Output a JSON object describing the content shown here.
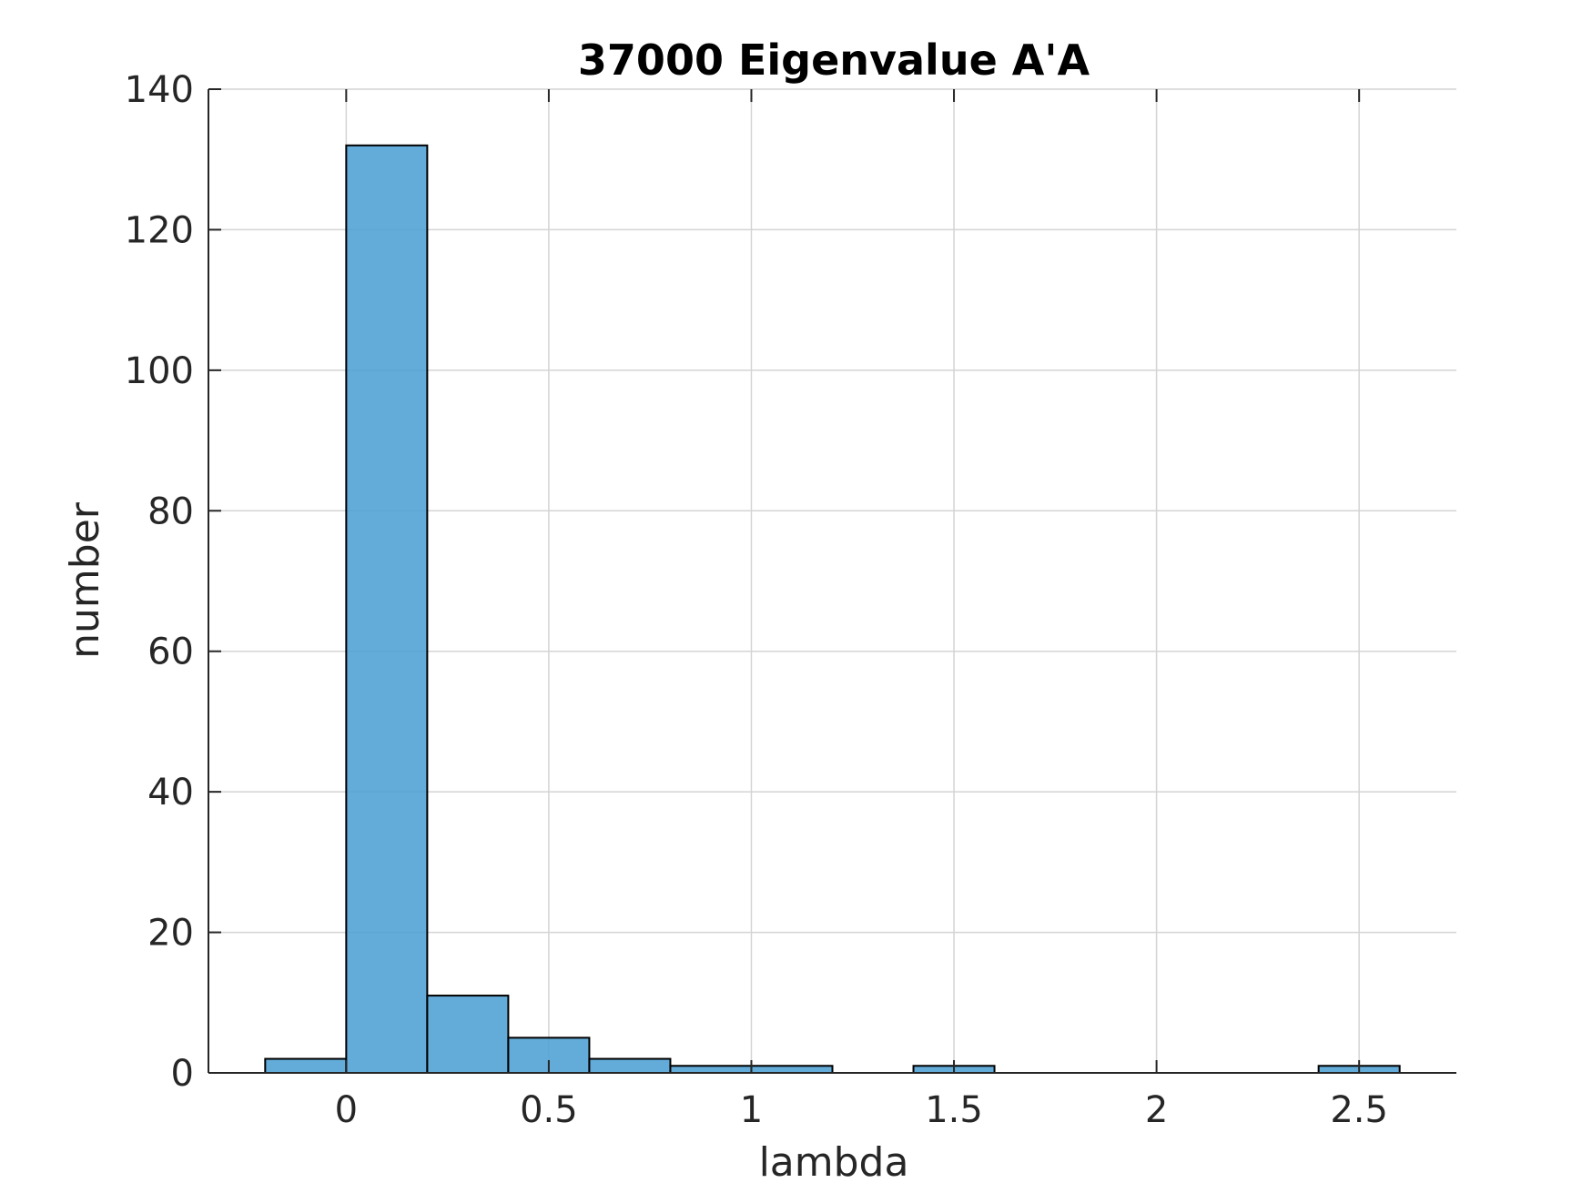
{
  "figure": {
    "background": "#ffffff"
  },
  "chart_data": {
    "type": "bar",
    "title": "37000 Eigenvalue A'A",
    "xlabel": "lambda",
    "ylabel": "number",
    "xlim": [
      -0.34,
      2.74
    ],
    "ylim": [
      0,
      140
    ],
    "xticks": [
      0,
      0.5,
      1,
      1.5,
      2,
      2.5
    ],
    "xtick_labels": [
      "0",
      "0.5",
      "1",
      "1.5",
      "2",
      "2.5"
    ],
    "yticks": [
      0,
      20,
      40,
      60,
      80,
      100,
      120,
      140
    ],
    "ytick_labels": [
      "0",
      "20",
      "40",
      "60",
      "80",
      "100",
      "120",
      "140"
    ],
    "grid": true,
    "bar_color": "#4d9fd4",
    "bar_edge_color": "#000000",
    "bins": [
      {
        "start": -0.2,
        "end": 0.0,
        "value": 2
      },
      {
        "start": 0.0,
        "end": 0.2,
        "value": 132
      },
      {
        "start": 0.2,
        "end": 0.4,
        "value": 11
      },
      {
        "start": 0.4,
        "end": 0.6,
        "value": 5
      },
      {
        "start": 0.6,
        "end": 0.8,
        "value": 2
      },
      {
        "start": 0.8,
        "end": 1.0,
        "value": 1
      },
      {
        "start": 1.0,
        "end": 1.2,
        "value": 1
      },
      {
        "start": 1.2,
        "end": 1.4,
        "value": 0
      },
      {
        "start": 1.4,
        "end": 1.6,
        "value": 1
      },
      {
        "start": 1.6,
        "end": 1.8,
        "value": 0
      },
      {
        "start": 1.8,
        "end": 2.0,
        "value": 0
      },
      {
        "start": 2.0,
        "end": 2.2,
        "value": 0
      },
      {
        "start": 2.2,
        "end": 2.4,
        "value": 0
      },
      {
        "start": 2.4,
        "end": 2.6,
        "value": 1
      }
    ]
  }
}
